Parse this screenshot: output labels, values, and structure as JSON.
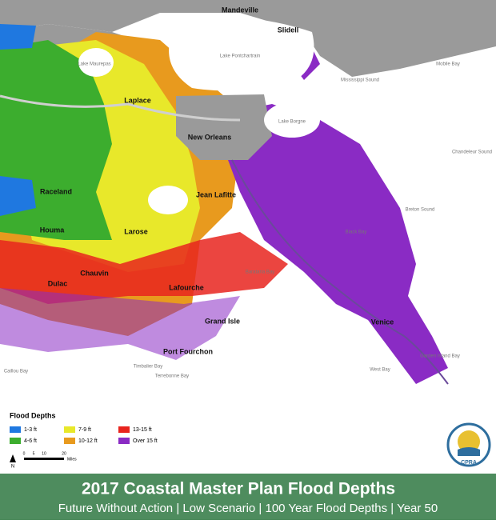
{
  "map": {
    "places": [
      "Mandeville",
      "Slidell",
      "Laplace",
      "New Orleans",
      "Raceland",
      "Jean Lafitte",
      "Houma",
      "Larose",
      "Chauvin",
      "Dulac",
      "Lafourche",
      "Grand Isle",
      "Port Fourchon",
      "Venice"
    ],
    "water": [
      "Lake Maurepas",
      "Lake Pontchartrain",
      "Lake Borgne",
      "Mobile Bay",
      "Mississippi Sound",
      "Chandeleur Sound",
      "Breton Sound",
      "Black Bay",
      "Barataria Bay",
      "Terrebonne Bay",
      "Timbalier Bay",
      "Caillou Bay",
      "West Bay",
      "Garden Island Bay"
    ]
  },
  "legend": {
    "title": "Flood Depths",
    "items": [
      {
        "label": "1-3 ft",
        "color": "#1f78e0"
      },
      {
        "label": "4-6 ft",
        "color": "#3cad2e"
      },
      {
        "label": "7-9 ft",
        "color": "#e8e82a"
      },
      {
        "label": "10-12 ft",
        "color": "#e89a1e"
      },
      {
        "label": "13-15 ft",
        "color": "#e8241e"
      },
      {
        "label": "Over 15 ft",
        "color": "#8a2bc4"
      }
    ]
  },
  "scale": {
    "north": "N",
    "ticks": [
      "0",
      "5",
      "10",
      "20"
    ],
    "unit": "Miles"
  },
  "logo": "CPRA",
  "banner": {
    "title": "2017 Coastal Master Plan Flood Depths",
    "subtitle": "Future Without Action | Low Scenario | 100 Year Flood Depths | Year 50"
  }
}
